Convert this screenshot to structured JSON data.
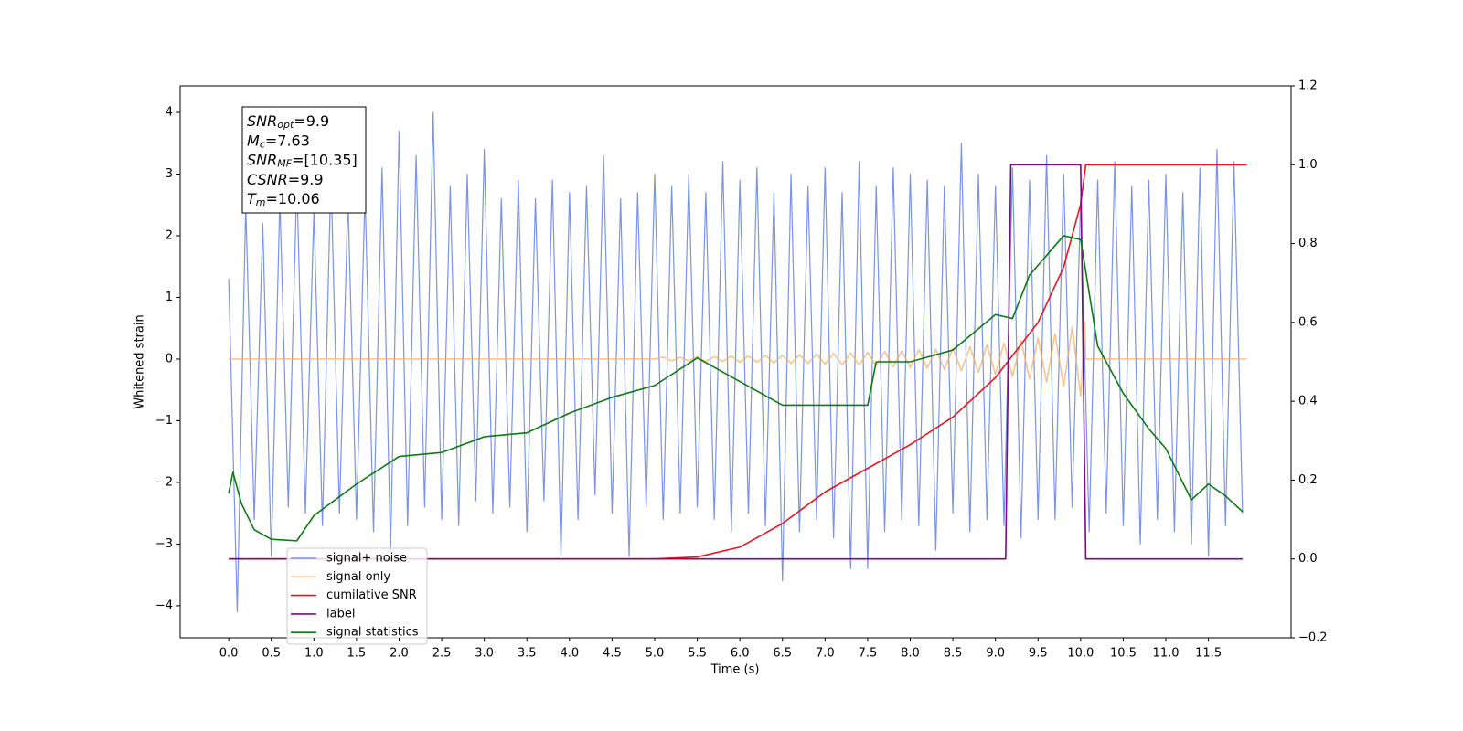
{
  "chart_data": {
    "type": "line",
    "x_label": "Time (s)",
    "y_label": "Whitened strain",
    "xlim": [
      -0.57,
      12.47
    ],
    "ylim": [
      -4.52,
      4.43
    ],
    "y2lim": [
      -0.2,
      1.2
    ],
    "xticks": [
      {
        "value": 0,
        "label": "0.0"
      },
      0.5,
      {
        "value": 1,
        "label": "1.0"
      },
      1.5,
      {
        "value": 2,
        "label": "2.0"
      },
      2.5,
      {
        "value": 3,
        "label": "3.0"
      },
      3.5,
      {
        "value": 4,
        "label": "4.0"
      },
      4.5,
      {
        "value": 5,
        "label": "5.0"
      },
      5.5,
      {
        "value": 6,
        "label": "6.0"
      },
      6.5,
      {
        "value": 7,
        "label": "7.0"
      },
      7.5,
      {
        "value": 8,
        "label": "8.0"
      },
      8.5,
      {
        "value": 9,
        "label": "9.0"
      },
      9.5,
      {
        "value": 10,
        "label": "10.0"
      },
      10.5,
      {
        "value": 11,
        "label": "11.0"
      },
      11.5
    ],
    "yticks": [
      {
        "value": -4,
        "label": "−4"
      },
      {
        "value": -3,
        "label": "−3"
      },
      {
        "value": -2,
        "label": "−2"
      },
      {
        "value": -1,
        "label": "−1"
      },
      0,
      1,
      2,
      3,
      4
    ],
    "y2ticks": [
      {
        "value": -0.2,
        "label": "−0.2"
      },
      {
        "value": 0,
        "label": "0.0"
      },
      0.2,
      0.4,
      0.6,
      0.8,
      {
        "value": 1,
        "label": "1.0"
      },
      1.2
    ],
    "legend": "lower left",
    "annotations": [
      {
        "base": "SNR",
        "sub": "opt",
        "text": "=9.9"
      },
      {
        "base": "M",
        "sub": "c",
        "text": "=7.63"
      },
      {
        "base": "SNR",
        "sub": "MF",
        "text": "=[10.35]"
      },
      {
        "base": "CSNR",
        "text": "=9.9"
      },
      {
        "base": "T",
        "sub": "m",
        "text": "=10.06"
      }
    ],
    "series": [
      {
        "name": "signal+ noise",
        "color": "#7a93e7",
        "x": [
          0.0,
          0.1,
          0.2,
          0.3,
          0.4,
          0.5,
          0.6,
          0.7,
          0.8,
          0.9,
          1.0,
          1.1,
          1.2,
          1.3,
          1.4,
          1.5,
          1.6,
          1.7,
          1.8,
          1.9,
          2.0,
          2.1,
          2.2,
          2.3,
          2.4,
          2.5,
          2.6,
          2.7,
          2.8,
          2.9,
          3.0,
          3.1,
          3.2,
          3.3,
          3.4,
          3.5,
          3.6,
          3.7,
          3.8,
          3.9,
          4.0,
          4.1,
          4.2,
          4.3,
          4.4,
          4.5,
          4.6,
          4.7,
          4.8,
          4.9,
          5.0,
          5.1,
          5.2,
          5.3,
          5.4,
          5.5,
          5.6,
          5.7,
          5.8,
          5.9,
          6.0,
          6.1,
          6.2,
          6.3,
          6.4,
          6.5,
          6.6,
          6.7,
          6.8,
          6.9,
          7.0,
          7.1,
          7.2,
          7.3,
          7.4,
          7.5,
          7.6,
          7.7,
          7.8,
          7.9,
          8.0,
          8.1,
          8.2,
          8.3,
          8.4,
          8.5,
          8.6,
          8.7,
          8.8,
          8.9,
          9.0,
          9.1,
          9.2,
          9.3,
          9.4,
          9.5,
          9.6,
          9.7,
          9.8,
          9.9,
          10.0,
          10.1,
          10.2,
          10.3,
          10.4,
          10.5,
          10.6,
          10.7,
          10.8,
          10.9,
          11.0,
          11.1,
          11.2,
          11.3,
          11.4,
          11.5,
          11.6,
          11.7,
          11.8,
          11.9
        ],
        "values": [
          1.3,
          -4.1,
          2.5,
          -2.6,
          2.2,
          -3.2,
          2.6,
          -2.4,
          2.9,
          -2.5,
          2.4,
          -2.7,
          3.0,
          -2.5,
          2.6,
          -2.6,
          2.7,
          -2.8,
          3.1,
          -3.1,
          3.7,
          -2.7,
          3.3,
          -2.4,
          4.0,
          -2.6,
          2.8,
          -2.7,
          3.0,
          -2.3,
          3.4,
          -2.5,
          2.6,
          -2.4,
          2.9,
          -2.8,
          2.6,
          -2.3,
          2.9,
          -3.2,
          2.7,
          -2.6,
          2.8,
          -2.2,
          3.3,
          -2.5,
          2.6,
          -3.2,
          2.7,
          -2.4,
          3.0,
          -2.6,
          2.8,
          -2.5,
          3.0,
          -2.4,
          2.7,
          -2.6,
          3.2,
          -2.8,
          2.9,
          -2.5,
          3.1,
          -2.7,
          2.7,
          -3.6,
          3.0,
          -2.8,
          2.8,
          -2.6,
          3.1,
          -2.9,
          2.7,
          -3.4,
          3.2,
          -3.4,
          2.8,
          -2.8,
          3.1,
          -2.6,
          3.0,
          -2.7,
          2.9,
          -3.1,
          2.8,
          -2.5,
          3.5,
          -2.8,
          3.0,
          -2.6,
          2.8,
          -2.7,
          3.1,
          -2.9,
          2.9,
          -2.6,
          3.3,
          -2.6,
          3.0,
          -2.4,
          2.6,
          -2.8,
          2.9,
          -2.5,
          3.2,
          -2.7,
          2.8,
          -3.0,
          2.9,
          -2.6,
          3.0,
          -2.8,
          2.7,
          -3.0,
          3.1,
          -3.2,
          3.4,
          -2.7,
          3.2,
          -2.5
        ]
      },
      {
        "name": "signal only",
        "color": "#f2b264",
        "x": [
          0.0,
          5.0,
          5.1,
          5.2,
          5.3,
          5.4,
          5.5,
          5.6,
          5.7,
          5.8,
          5.9,
          6.0,
          6.1,
          6.2,
          6.3,
          6.4,
          6.5,
          6.6,
          6.7,
          6.8,
          6.9,
          7.0,
          7.1,
          7.2,
          7.3,
          7.4,
          7.5,
          7.6,
          7.7,
          7.8,
          7.9,
          8.0,
          8.1,
          8.2,
          8.3,
          8.4,
          8.5,
          8.6,
          8.7,
          8.8,
          8.9,
          9.0,
          9.1,
          9.2,
          9.3,
          9.4,
          9.5,
          9.6,
          9.7,
          9.8,
          9.9,
          10.0,
          10.05,
          10.06,
          11.95
        ],
        "values": [
          0,
          0,
          0.03,
          -0.03,
          0.03,
          -0.03,
          0.04,
          -0.04,
          0.04,
          -0.04,
          0.05,
          -0.05,
          0.05,
          -0.05,
          0.06,
          -0.06,
          0.06,
          -0.07,
          0.07,
          -0.07,
          0.08,
          -0.08,
          0.09,
          -0.09,
          0.1,
          -0.1,
          0.11,
          -0.11,
          0.12,
          -0.12,
          0.13,
          -0.14,
          0.15,
          -0.15,
          0.16,
          -0.17,
          0.18,
          -0.19,
          0.2,
          -0.22,
          0.23,
          -0.25,
          0.26,
          -0.28,
          0.3,
          -0.32,
          0.34,
          -0.37,
          0.41,
          -0.45,
          0.52,
          -0.6,
          0.6,
          0,
          0
        ]
      },
      {
        "name": "cumilative SNR",
        "color": "#e8141c",
        "axis": "y2",
        "x": [
          0.0,
          5.0,
          5.5,
          6.0,
          6.5,
          7.0,
          7.5,
          8.0,
          8.5,
          9.0,
          9.5,
          9.8,
          10.0,
          10.06,
          11.95
        ],
        "values": [
          0,
          0,
          0.005,
          0.03,
          0.09,
          0.17,
          0.23,
          0.29,
          0.36,
          0.46,
          0.6,
          0.74,
          0.9,
          1.0,
          1.0
        ]
      },
      {
        "name": "label",
        "color": "#7d0a82",
        "axis": "y2",
        "x": [
          0.0,
          9.12,
          9.18,
          10.0,
          10.06,
          11.9
        ],
        "values": [
          0,
          0,
          1,
          1,
          0,
          0
        ]
      },
      {
        "name": "signal statistics",
        "color": "#0c7a12",
        "axis": "y2",
        "x": [
          0.0,
          0.05,
          0.15,
          0.3,
          0.5,
          0.8,
          1.0,
          1.5,
          2.0,
          2.5,
          3.0,
          3.5,
          4.0,
          4.5,
          5.0,
          5.5,
          6.0,
          6.5,
          7.0,
          7.5,
          7.6,
          8.0,
          8.5,
          9.0,
          9.2,
          9.4,
          9.8,
          10.0,
          10.2,
          10.5,
          10.8,
          11.0,
          11.3,
          11.5,
          11.7,
          11.9
        ],
        "values": [
          0.167,
          0.22,
          0.14,
          0.074,
          0.05,
          0.046,
          0.11,
          0.19,
          0.26,
          0.27,
          0.31,
          0.32,
          0.37,
          0.41,
          0.44,
          0.51,
          0.45,
          0.39,
          0.39,
          0.39,
          0.5,
          0.5,
          0.53,
          0.62,
          0.61,
          0.72,
          0.82,
          0.81,
          0.54,
          0.42,
          0.33,
          0.28,
          0.15,
          0.19,
          0.16,
          0.12
        ]
      }
    ]
  }
}
